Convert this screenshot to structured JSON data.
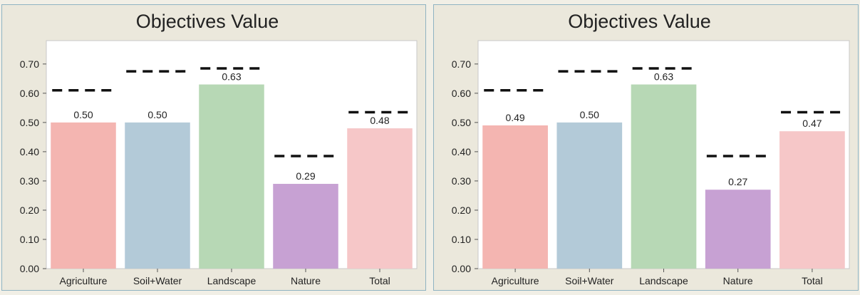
{
  "chart_data": [
    {
      "type": "bar",
      "title": "Objectives Value",
      "categories": [
        "Agriculture",
        "Soil+Water",
        "Landscape",
        "Nature",
        "Total"
      ],
      "values": [
        0.5,
        0.5,
        0.63,
        0.29,
        0.48
      ],
      "value_labels": [
        "0.50",
        "0.50",
        "0.63",
        "0.29",
        "0.48"
      ],
      "target_values": [
        0.61,
        0.675,
        0.685,
        0.385,
        0.535
      ],
      "bar_colors": [
        "#f4b5b1",
        "#b3cad8",
        "#b7d8b5",
        "#c7a1d3",
        "#f6c7c8"
      ],
      "yticks": [
        "0.00",
        "0.10",
        "0.20",
        "0.30",
        "0.40",
        "0.50",
        "0.60",
        "0.70"
      ],
      "ylim": [
        0,
        0.78
      ],
      "grid": false,
      "xlabel": "",
      "ylabel": ""
    },
    {
      "type": "bar",
      "title": "Objectives Value",
      "categories": [
        "Agriculture",
        "Soil+Water",
        "Landscape",
        "Nature",
        "Total"
      ],
      "values": [
        0.49,
        0.5,
        0.63,
        0.27,
        0.47
      ],
      "value_labels": [
        "0.49",
        "0.50",
        "0.63",
        "0.27",
        "0.47"
      ],
      "target_values": [
        0.61,
        0.675,
        0.685,
        0.385,
        0.535
      ],
      "bar_colors": [
        "#f4b5b1",
        "#b3cad8",
        "#b7d8b5",
        "#c7a1d3",
        "#f6c7c8"
      ],
      "yticks": [
        "0.00",
        "0.10",
        "0.20",
        "0.30",
        "0.40",
        "0.50",
        "0.60",
        "0.70"
      ],
      "ylim": [
        0,
        0.78
      ],
      "grid": false,
      "xlabel": "",
      "ylabel": ""
    }
  ]
}
